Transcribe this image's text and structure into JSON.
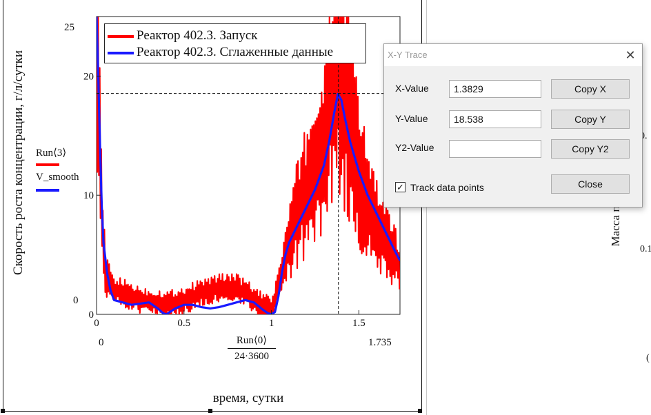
{
  "plot": {
    "legend": [
      {
        "label": "Реактор 402.3. Запуск",
        "color": "#ff0000"
      },
      {
        "label": "Реактор 402.3. Сглаженные данные",
        "color": "#1a1aff"
      }
    ],
    "ylabel": "Скорость роста концентрации, г/л/сутки",
    "y_series_labels": [
      {
        "text": "Run⟨3⟩",
        "color": "#ff0000"
      },
      {
        "text": "V_smooth",
        "color": "#1a1aff"
      }
    ],
    "xaxis_min_label": "0",
    "xaxis_max_label": "1.735",
    "x_expr_numerator": "Run⟨0⟩",
    "x_expr_denominator": "24·3600",
    "ymin_label": "0",
    "ymax_label": "25",
    "xlabel": "время, сутки"
  },
  "chart_data": {
    "type": "line",
    "xlim": [
      0,
      1.735
    ],
    "ylim": [
      0,
      25
    ],
    "x_ticks": [
      "0",
      "0.5",
      "1",
      "1.5"
    ],
    "y_ticks": [
      "0",
      "10",
      "20",
      "25"
    ],
    "grid": false,
    "legend_position": "top",
    "trace_crosshair": {
      "x": 1.3829,
      "y": 18.538
    },
    "series": [
      {
        "name": "Реактор 402.3. Запуск",
        "color": "#ff0000",
        "style": "noisy",
        "x": [
          0,
          0.005,
          0.01,
          0.02,
          0.03,
          0.05,
          0.08,
          0.1,
          0.15,
          0.2,
          0.25,
          0.3,
          0.35,
          0.4,
          0.45,
          0.5,
          0.55,
          0.6,
          0.65,
          0.7,
          0.75,
          0.8,
          0.85,
          0.9,
          0.95,
          1.0,
          1.05,
          1.1,
          1.15,
          1.2,
          1.25,
          1.3,
          1.33,
          1.36,
          1.38,
          1.4,
          1.45,
          1.5,
          1.55,
          1.6,
          1.65,
          1.7,
          1.735
        ],
        "y": [
          25,
          25,
          22,
          14,
          8,
          3.5,
          2.5,
          2,
          1.8,
          1.5,
          1.2,
          1,
          1,
          0.8,
          1,
          1.2,
          1.5,
          1.8,
          2,
          2.2,
          2.3,
          2.2,
          1.8,
          1.2,
          0.6,
          0.3,
          3,
          6,
          8.5,
          10.5,
          12,
          14,
          17,
          21,
          23,
          20,
          16,
          12,
          9.5,
          7.5,
          6,
          5,
          4
        ]
      },
      {
        "name": "Реактор 402.3. Сглаженные данные",
        "color": "#1a1aff",
        "style": "smooth",
        "x": [
          0,
          0.01,
          0.02,
          0.03,
          0.04,
          0.06,
          0.08,
          0.1,
          0.15,
          0.2,
          0.25,
          0.3,
          0.35,
          0.38,
          0.4,
          0.45,
          0.5,
          0.55,
          0.6,
          0.65,
          0.7,
          0.75,
          0.8,
          0.85,
          0.9,
          0.95,
          0.98,
          1.0,
          1.02,
          1.04,
          1.06,
          1.08,
          1.1,
          1.15,
          1.2,
          1.25,
          1.3,
          1.33,
          1.36,
          1.38,
          1.4,
          1.42,
          1.45,
          1.5,
          1.55,
          1.6,
          1.65,
          1.7,
          1.735
        ],
        "y": [
          25,
          20,
          14,
          9,
          6,
          3.5,
          2,
          1.2,
          1,
          0.8,
          0.9,
          1,
          0.5,
          0.1,
          0,
          0.5,
          0.8,
          0.8,
          0.6,
          0.5,
          0.6,
          0.8,
          1.0,
          1.2,
          1,
          0.4,
          0.1,
          0,
          0.2,
          1.5,
          3.5,
          5,
          6,
          7.5,
          9,
          10.5,
          12.5,
          14.5,
          17,
          18.5,
          18,
          16.5,
          14.5,
          12,
          10,
          8.5,
          7,
          5.5,
          4.5
        ]
      }
    ]
  },
  "dialog": {
    "title": "X-Y Trace",
    "close_glyph": "✕",
    "x_label": "X-Value",
    "x_value": "1.3829",
    "y_label": "Y-Value",
    "y_value": "18.538",
    "y2_label": "Y2-Value",
    "y2_value": "",
    "copy_x": "Copy X",
    "copy_y": "Copy Y",
    "copy_y2": "Copy Y2",
    "track_label": "Track data points",
    "track_checked": true,
    "check_glyph": "✓",
    "close_button": "Close"
  },
  "right_panel": {
    "label_a": "0.",
    "label_b": "Масса п",
    "label_c": "0.1",
    "label_d": "("
  }
}
